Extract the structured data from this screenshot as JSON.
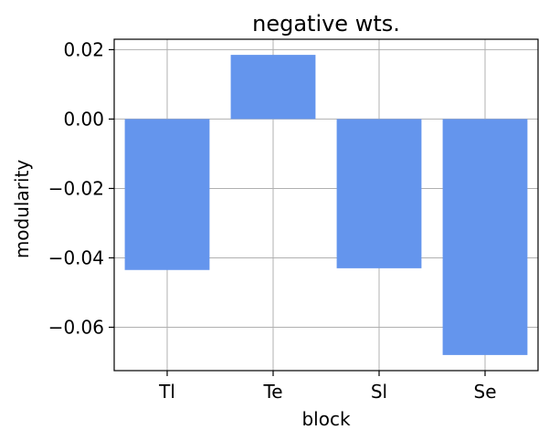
{
  "chart_data": {
    "type": "bar",
    "title": "negative wts.",
    "xlabel": "block",
    "ylabel": "modularity",
    "categories": [
      "Tl",
      "Te",
      "Sl",
      "Se"
    ],
    "values": [
      -0.0435,
      0.0185,
      -0.043,
      -0.068
    ],
    "ylim": [
      -0.0725,
      0.023
    ],
    "yticks": [
      0.02,
      0.0,
      -0.02,
      -0.04,
      -0.06
    ],
    "ytick_labels": [
      "0.02",
      "0.00",
      "−0.02",
      "−0.04",
      "−0.06"
    ],
    "grid": true,
    "bar_color": "#6495ed"
  }
}
